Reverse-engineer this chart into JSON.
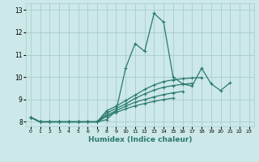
{
  "xlabel": "Humidex (Indice chaleur)",
  "ylabel": "",
  "x_values": [
    0,
    1,
    2,
    3,
    4,
    5,
    6,
    7,
    8,
    9,
    10,
    11,
    12,
    13,
    14,
    15,
    16,
    17,
    18,
    19,
    20,
    21,
    22,
    23
  ],
  "lines": [
    [
      8.2,
      8.0,
      8.0,
      8.0,
      8.0,
      8.0,
      8.0,
      8.0,
      8.1,
      8.5,
      10.4,
      11.5,
      11.15,
      12.85,
      12.45,
      10.0,
      9.7,
      9.6,
      10.4,
      9.7,
      9.4,
      9.75,
      null,
      null
    ],
    [
      8.2,
      8.0,
      8.0,
      8.0,
      8.0,
      8.0,
      8.0,
      8.0,
      8.5,
      8.7,
      8.95,
      9.2,
      9.45,
      9.65,
      9.8,
      9.88,
      9.93,
      9.96,
      9.98,
      null,
      null,
      null,
      null,
      null
    ],
    [
      8.2,
      8.0,
      8.0,
      8.0,
      8.0,
      8.0,
      8.0,
      8.0,
      8.4,
      8.6,
      8.8,
      9.05,
      9.25,
      9.42,
      9.55,
      9.62,
      9.68,
      9.72,
      null,
      null,
      null,
      null,
      null,
      null
    ],
    [
      8.2,
      8.0,
      8.0,
      8.0,
      8.0,
      8.0,
      8.0,
      8.0,
      8.3,
      8.5,
      8.7,
      8.88,
      9.0,
      9.12,
      9.22,
      9.3,
      9.36,
      null,
      null,
      null,
      null,
      null,
      null,
      null
    ],
    [
      8.2,
      8.0,
      8.0,
      8.0,
      8.0,
      8.0,
      8.0,
      8.0,
      8.25,
      8.42,
      8.58,
      8.72,
      8.82,
      8.92,
      9.0,
      9.06,
      null,
      null,
      null,
      null,
      null,
      null,
      null,
      null
    ]
  ],
  "line_color": "#2a7a6a",
  "background_color": "#cce8e8",
  "grid_color": "#aacccc",
  "ylim": [
    7.8,
    13.3
  ],
  "xlim": [
    -0.5,
    23.5
  ],
  "yticks": [
    8,
    9,
    10,
    11,
    12,
    13
  ],
  "xticks": [
    0,
    1,
    2,
    3,
    4,
    5,
    6,
    7,
    8,
    9,
    10,
    11,
    12,
    13,
    14,
    15,
    16,
    17,
    18,
    19,
    20,
    21,
    22,
    23
  ]
}
